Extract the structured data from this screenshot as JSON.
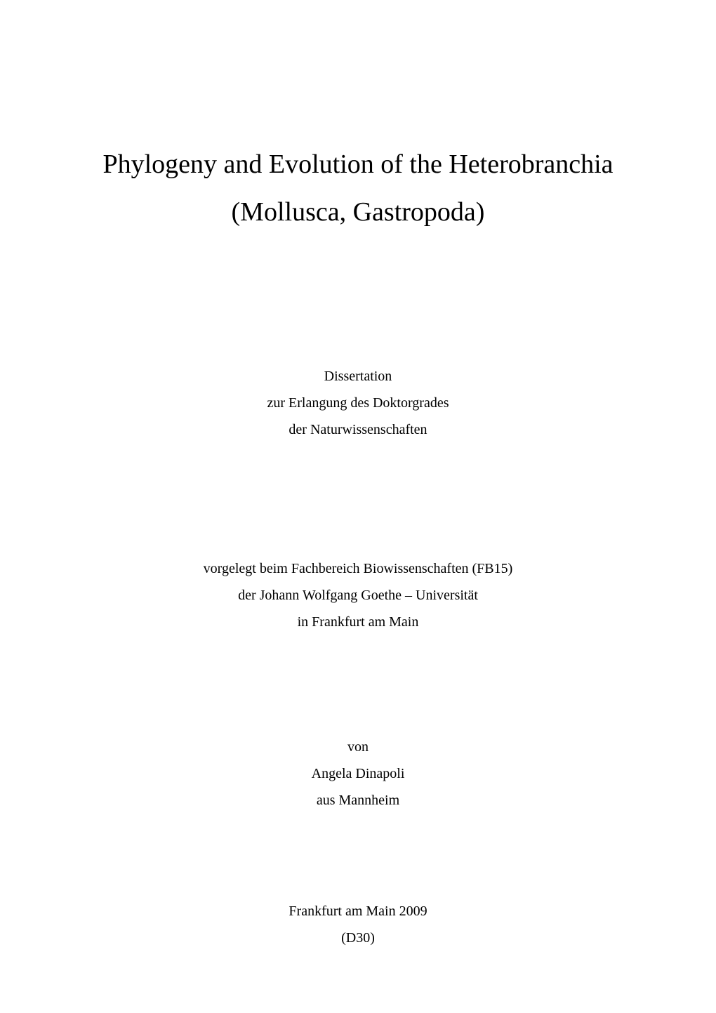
{
  "title": {
    "line1": "Phylogeny and Evolution of the Heterobranchia",
    "line2": "(Mollusca, Gastropoda)",
    "fontsize": 38,
    "color": "#000000"
  },
  "dissertation": {
    "line1": "Dissertation",
    "line2": "zur Erlangung des Doktorgrades",
    "line3": "der Naturwissenschaften",
    "fontsize": 20
  },
  "faculty": {
    "line1": "vorgelegt beim Fachbereich Biowissenschaften (FB15)",
    "line2": "der Johann Wolfgang Goethe – Universität",
    "line3": "in Frankfurt am Main",
    "fontsize": 20
  },
  "author": {
    "line1": "von",
    "line2": "Angela Dinapoli",
    "line3": "aus Mannheim",
    "fontsize": 20
  },
  "footer": {
    "line1": "Frankfurt am Main 2009",
    "line2": "(D30)",
    "fontsize": 20
  },
  "page_background": "#ffffff",
  "text_color": "#000000",
  "font_family": "Times New Roman"
}
